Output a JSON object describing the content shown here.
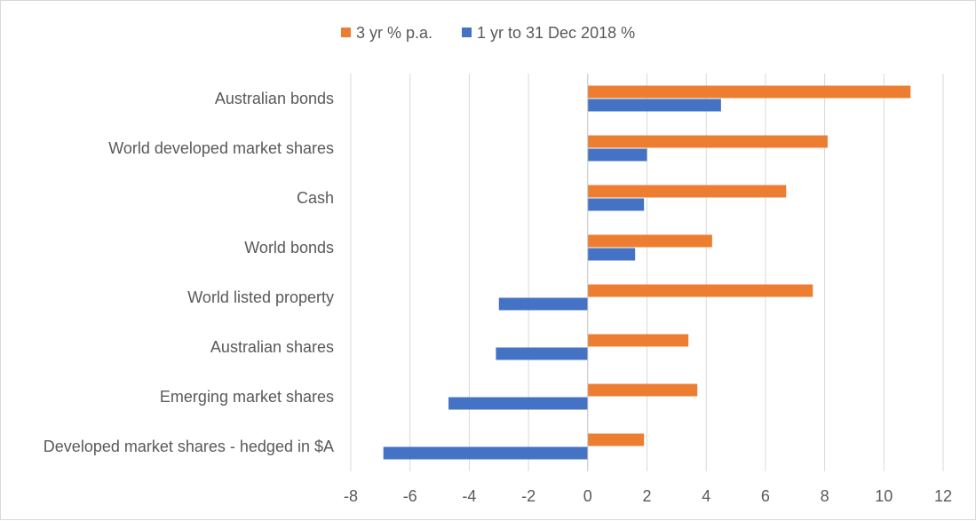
{
  "chart_data": {
    "type": "bar",
    "orientation": "horizontal",
    "categories": [
      "Australian bonds",
      "World developed market shares",
      "Cash",
      "World bonds",
      "World listed property",
      "Australian shares",
      "Emerging market shares",
      "Developed market shares -  hedged in $A"
    ],
    "series": [
      {
        "name": "3 yr % p.a.",
        "color": "#ED7D31",
        "values": [
          10.9,
          8.1,
          6.7,
          4.2,
          7.6,
          3.4,
          3.7,
          1.9
        ]
      },
      {
        "name": "1 yr to 31 Dec 2018 %",
        "color": "#4472C4",
        "values": [
          4.5,
          2.0,
          1.9,
          1.6,
          -3.0,
          -3.1,
          -4.7,
          -6.9
        ]
      }
    ],
    "xlim": [
      -8,
      12
    ],
    "xticks": [
      "-8",
      "-6",
      "-4",
      "-2",
      "0",
      "2",
      "4",
      "6",
      "8",
      "10",
      "12"
    ],
    "grid": true,
    "legend_position": "top"
  }
}
